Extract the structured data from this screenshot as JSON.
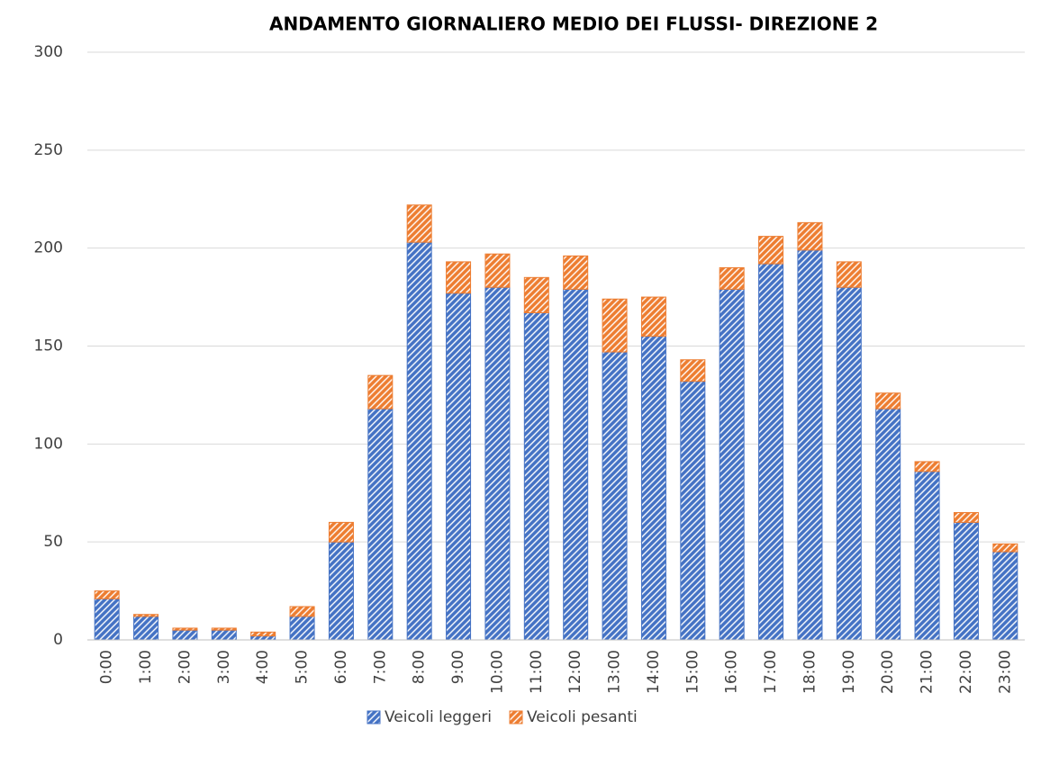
{
  "chart_data": {
    "type": "stacked_bar",
    "title": "ANDAMENTO GIORNALIERO MEDIO DEI  FLUSSI- DIREZIONE 2",
    "categories": [
      "0:00",
      "1:00",
      "2:00",
      "3:00",
      "4:00",
      "5:00",
      "6:00",
      "7:00",
      "8:00",
      "9:00",
      "10:00",
      "11:00",
      "12:00",
      "13:00",
      "14:00",
      "15:00",
      "16:00",
      "17:00",
      "18:00",
      "19:00",
      "20:00",
      "21:00",
      "22:00",
      "23:00"
    ],
    "series": [
      {
        "name": "Veicoli leggeri",
        "color": "#4472c4",
        "values": [
          21,
          12,
          5,
          5,
          2,
          12,
          50,
          118,
          203,
          177,
          180,
          167,
          179,
          147,
          155,
          132,
          179,
          192,
          199,
          180,
          118,
          86,
          60,
          45
        ]
      },
      {
        "name": "Veicoli pesanti",
        "color": "#ed7d31",
        "values": [
          4,
          1,
          1,
          1,
          2,
          5,
          10,
          17,
          19,
          16,
          17,
          18,
          17,
          27,
          20,
          11,
          11,
          14,
          14,
          13,
          8,
          5,
          5,
          4
        ]
      }
    ],
    "ylim": [
      0,
      300
    ],
    "yticks": [
      0,
      50,
      100,
      150,
      200,
      250,
      300
    ],
    "grid": true,
    "legend": "bottom"
  }
}
